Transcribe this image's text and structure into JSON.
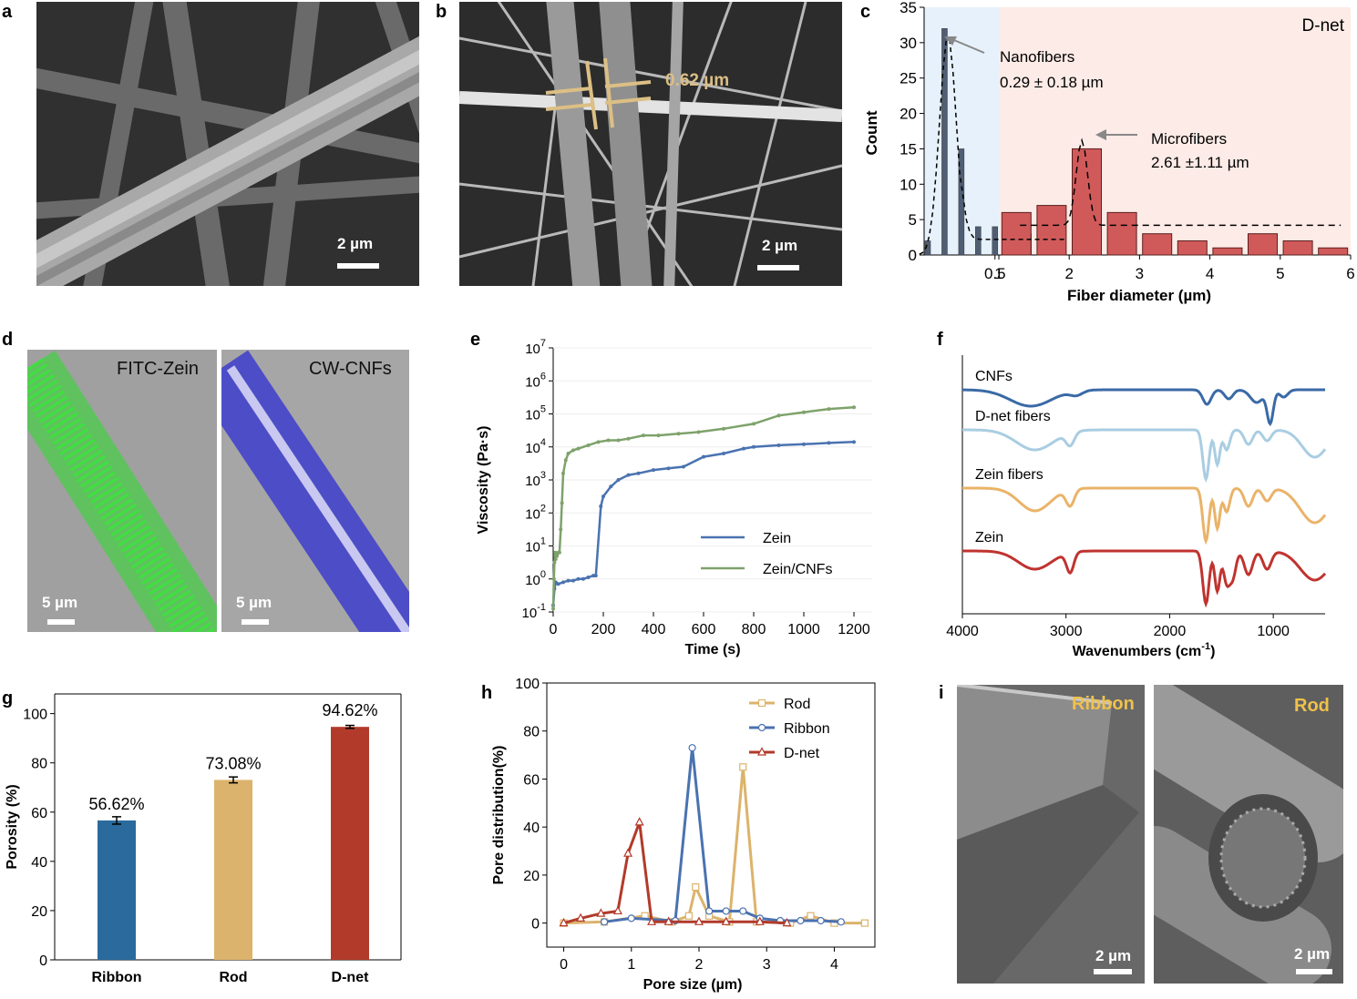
{
  "panels": {
    "a": {
      "letter": "a",
      "scale_bar": "2 µm"
    },
    "b": {
      "letter": "b",
      "scale_bar": "2 µm",
      "measurement": "0.62 µm"
    },
    "c": {
      "letter": "c"
    },
    "d": {
      "letter": "d",
      "left_label": "FITC-Zein",
      "right_label": "CW-CNFs",
      "scale_left": "5 µm",
      "scale_right": "5 µm"
    },
    "e": {
      "letter": "e"
    },
    "f": {
      "letter": "f"
    },
    "g": {
      "letter": "g"
    },
    "h": {
      "letter": "h"
    },
    "i": {
      "letter": "i",
      "left_label": "Ribbon",
      "right_label": "Rod",
      "scale_left": "2 µm",
      "scale_right": "2 µm"
    }
  },
  "colors": {
    "nano_bar": "#505e74",
    "micro_bar": "#d05a5a",
    "nano_bg": "#e6f1fb",
    "micro_bg": "#fcebe6",
    "zein_blue": "#4a72b0",
    "zein_cnf_green": "#7ea26b",
    "ftir_cnfs": "#3a6aa6",
    "ftir_dnet": "#a9cde2",
    "ftir_zeinfibers": "#eab368",
    "ftir_zein": "#c0332f",
    "ribbon_bar": "#2a6a9c",
    "rod_bar": "#dcb36c",
    "dnet_bar": "#b23a2a",
    "scale_gold": "#f0c14b"
  },
  "chart_data": [
    {
      "id": "c",
      "type": "bar",
      "title": "D-net",
      "xlabel": "Fiber diameter (µm)",
      "ylabel": "Count",
      "ylim": [
        0,
        35
      ],
      "yticks": [
        0,
        5,
        10,
        15,
        20,
        25,
        30,
        35
      ],
      "x_ticks_nano": [
        {
          "v": 0.5,
          "label": "0.5"
        },
        {
          "v": 1,
          "label": "1"
        }
      ],
      "x_ticks_micro": [
        {
          "v": 1,
          "label": "1"
        },
        {
          "v": 2,
          "label": "2"
        },
        {
          "v": 3,
          "label": "3"
        },
        {
          "v": 4,
          "label": "4"
        },
        {
          "v": 5,
          "label": "5"
        },
        {
          "v": 6,
          "label": "6"
        }
      ],
      "nano_bins": [
        {
          "x": 0.1,
          "count": 2
        },
        {
          "x": 0.2,
          "count": 32
        },
        {
          "x": 0.3,
          "count": 15
        },
        {
          "x": 0.4,
          "count": 4
        },
        {
          "x": 0.5,
          "count": 4
        },
        {
          "x": 0.6,
          "count": 2
        },
        {
          "x": 0.7,
          "count": 3
        },
        {
          "x": 0.8,
          "count": 2
        },
        {
          "x": 0.9,
          "count": 1
        }
      ],
      "micro_bins": [
        {
          "x": 1.25,
          "count": 6
        },
        {
          "x": 1.75,
          "count": 7
        },
        {
          "x": 2.25,
          "count": 15
        },
        {
          "x": 2.75,
          "count": 6
        },
        {
          "x": 3.25,
          "count": 3
        },
        {
          "x": 3.75,
          "count": 2
        },
        {
          "x": 4.25,
          "count": 1
        },
        {
          "x": 4.75,
          "count": 3
        },
        {
          "x": 5.25,
          "count": 2
        },
        {
          "x": 5.75,
          "count": 1
        }
      ],
      "annotations": [
        {
          "name": "Nanofibers",
          "stat": "0.29 ± 0.18 µm"
        },
        {
          "name": "Microfibers",
          "stat": "2.61 ±1.11 µm"
        }
      ]
    },
    {
      "id": "e",
      "type": "line",
      "xlabel": "Time (s)",
      "ylabel": "Viscosity (Pa·s)",
      "xlim": [
        0,
        1200
      ],
      "ylim_log10": [
        -1,
        7
      ],
      "xticks": [
        0,
        200,
        400,
        600,
        800,
        1000,
        1200
      ],
      "yticks": [
        {
          "v": -1,
          "label": "-1"
        },
        {
          "v": 0,
          "label": "0"
        },
        {
          "v": 1,
          "label": "1"
        },
        {
          "v": 2,
          "label": "2"
        },
        {
          "v": 3,
          "label": "3"
        },
        {
          "v": 4,
          "label": "4"
        },
        {
          "v": 5,
          "label": "5"
        },
        {
          "v": 6,
          "label": "6"
        },
        {
          "v": 7,
          "label": "7"
        }
      ],
      "series": [
        {
          "name": "Zein",
          "x": [
            0,
            5,
            10,
            20,
            40,
            60,
            80,
            100,
            120,
            140,
            160,
            170,
            190,
            200,
            230,
            260,
            300,
            340,
            400,
            460,
            520,
            600,
            680,
            760,
            800,
            900,
            1000,
            1100,
            1200
          ],
          "logy": [
            -0.8,
            -0.3,
            -0.1,
            -0.15,
            -0.1,
            -0.05,
            -0.05,
            0,
            0,
            0.05,
            0.1,
            0.1,
            2.2,
            2.5,
            2.8,
            3.0,
            3.15,
            3.2,
            3.3,
            3.35,
            3.4,
            3.7,
            3.8,
            3.95,
            4.0,
            4.05,
            4.08,
            4.12,
            4.15
          ]
        },
        {
          "name": "Zein/CNFs",
          "x": [
            0,
            3,
            5,
            8,
            10,
            15,
            20,
            25,
            30,
            35,
            40,
            50,
            60,
            80,
            100,
            140,
            180,
            220,
            260,
            300,
            360,
            420,
            500,
            580,
            680,
            800,
            900,
            1000,
            1100,
            1200
          ],
          "logy": [
            -0.9,
            0,
            0.5,
            0.8,
            0.6,
            0.7,
            0.8,
            0.8,
            1.5,
            2.3,
            3.2,
            3.6,
            3.8,
            3.9,
            3.95,
            4.05,
            4.15,
            4.2,
            4.2,
            4.25,
            4.35,
            4.35,
            4.4,
            4.45,
            4.55,
            4.7,
            4.95,
            5.05,
            5.15,
            5.2
          ]
        }
      ]
    },
    {
      "id": "f",
      "type": "line",
      "xlabel": "Wavenumbers (cm",
      "xlabel_sup": "-1",
      "xlabel_close": ")",
      "xlim": [
        4000,
        500
      ],
      "xticks": [
        4000,
        3000,
        2000,
        1000
      ],
      "series": [
        {
          "name": "CNFs",
          "baseline": 0,
          "dips": [
            [
              3340,
              18,
              200
            ],
            [
              2900,
              5,
              60
            ],
            [
              1640,
              16,
              40
            ],
            [
              1430,
              10,
              40
            ],
            [
              1160,
              14,
              60
            ],
            [
              1030,
              36,
              30
            ],
            [
              900,
              8,
              40
            ]
          ]
        },
        {
          "name": "D-net fibers",
          "baseline": 0,
          "dips": [
            [
              3300,
              22,
              180
            ],
            [
              2960,
              14,
              40
            ],
            [
              1650,
              54,
              30
            ],
            [
              1540,
              38,
              25
            ],
            [
              1450,
              22,
              30
            ],
            [
              1240,
              16,
              40
            ],
            [
              1060,
              12,
              40
            ],
            [
              600,
              30,
              120
            ]
          ]
        },
        {
          "name": "Zein fibers",
          "baseline": 0,
          "dips": [
            [
              3300,
              25,
              150
            ],
            [
              2960,
              18,
              40
            ],
            [
              1650,
              58,
              30
            ],
            [
              1540,
              44,
              25
            ],
            [
              1450,
              26,
              30
            ],
            [
              1240,
              20,
              40
            ],
            [
              1060,
              14,
              40
            ],
            [
              600,
              38,
              140
            ]
          ]
        },
        {
          "name": "Zein",
          "baseline": 0,
          "dips": [
            [
              3300,
              20,
              160
            ],
            [
              2960,
              22,
              35
            ],
            [
              1650,
              58,
              30
            ],
            [
              1540,
              44,
              25
            ],
            [
              1450,
              34,
              30
            ],
            [
              1390,
              28,
              30
            ],
            [
              1240,
              26,
              40
            ],
            [
              1060,
              20,
              40
            ],
            [
              600,
              32,
              140
            ]
          ]
        }
      ]
    },
    {
      "id": "g",
      "type": "bar",
      "ylabel": "Porosity (%)",
      "ylim": [
        0,
        108
      ],
      "yticks": [
        0,
        20,
        40,
        60,
        80,
        100
      ],
      "categories": [
        "Ribbon",
        "Rod",
        "D-net"
      ],
      "values": [
        56.62,
        73.08,
        94.62
      ],
      "errors": [
        1.5,
        1.2,
        0.6
      ],
      "value_labels": [
        "56.62%",
        "73.08%",
        "94.62%"
      ]
    },
    {
      "id": "h",
      "type": "line",
      "xlabel": "Pore size (µm)",
      "ylabel": "Pore distribution(%)",
      "xlim": [
        -0.25,
        4.6
      ],
      "ylim": [
        -10,
        100
      ],
      "xticks": [
        0,
        1,
        2,
        3,
        4
      ],
      "yticks": [
        0,
        20,
        40,
        60,
        80,
        100
      ],
      "series": [
        {
          "name": "Rod",
          "marker": "square",
          "x": [
            0,
            0.6,
            1.2,
            1.6,
            1.85,
            1.95,
            2.15,
            2.45,
            2.65,
            2.85,
            3.35,
            3.65,
            4.0,
            4.45
          ],
          "y": [
            0,
            0.5,
            3,
            0.5,
            3,
            15,
            3,
            0.5,
            65,
            0.5,
            0,
            3,
            0,
            0
          ]
        },
        {
          "name": "Ribbon",
          "marker": "circle",
          "x": [
            0.6,
            1.0,
            1.65,
            1.9,
            2.15,
            2.4,
            2.65,
            2.9,
            3.2,
            3.5,
            3.8,
            4.1
          ],
          "y": [
            0.5,
            2,
            1,
            73,
            5,
            5,
            5,
            2,
            1,
            1,
            1,
            0.5
          ]
        },
        {
          "name": "D-net",
          "marker": "triangle",
          "x": [
            0,
            0.25,
            0.55,
            0.8,
            0.95,
            1.12,
            1.3,
            1.55,
            2.0,
            2.4,
            2.9,
            3.3
          ],
          "y": [
            0,
            2,
            4,
            5,
            29,
            42,
            0.5,
            0.5,
            0.5,
            0.5,
            0.5,
            0
          ]
        }
      ]
    }
  ]
}
